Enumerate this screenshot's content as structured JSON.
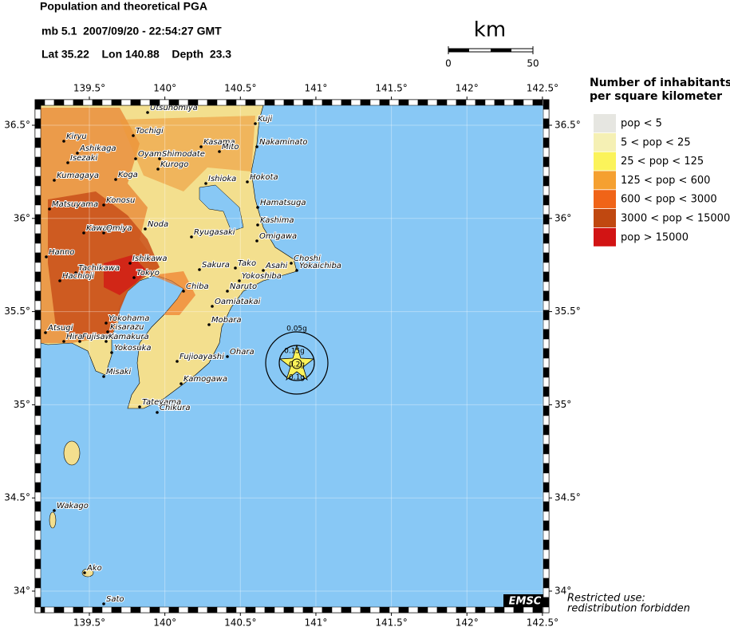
{
  "header": {
    "title": "Population and theoretical PGA",
    "event": "mb 5.1  2007/09/20 - 22:54:27 GMT",
    "location": "Lat 35.22    Lon 140.88    Depth  23.3"
  },
  "scale_bar": {
    "unit": "km",
    "ticks": [
      0,
      50
    ]
  },
  "axes": {
    "lon_ticks": [
      {
        "value": 139.5,
        "label": "139.5°"
      },
      {
        "value": 140,
        "label": "140°"
      },
      {
        "value": 140.5,
        "label": "140.5°"
      },
      {
        "value": 141,
        "label": "141°"
      },
      {
        "value": 141.5,
        "label": "141.5°"
      },
      {
        "value": 142,
        "label": "142°"
      },
      {
        "value": 142.5,
        "label": "142.5°"
      }
    ],
    "lat_ticks": [
      {
        "value": 36.5,
        "label": "36.5°"
      },
      {
        "value": 36,
        "label": "36°"
      },
      {
        "value": 35.5,
        "label": "35.5°"
      },
      {
        "value": 35,
        "label": "35°"
      },
      {
        "value": 34.5,
        "label": "34.5°"
      },
      {
        "value": 34,
        "label": "34°"
      }
    ]
  },
  "legend": {
    "title": [
      "Number of inhabitants",
      "per square kilometer"
    ],
    "items": [
      {
        "label": "pop < 5",
        "color": "#e6e6e1"
      },
      {
        "label": "5 < pop < 25",
        "color": "#f5f0b4"
      },
      {
        "label": "25 < pop < 125",
        "color": "#fbf35a"
      },
      {
        "label": "125 < pop < 600",
        "color": "#f5a030"
      },
      {
        "label": "600 < pop < 3000",
        "color": "#f06418"
      },
      {
        "label": "3000 < pop < 15000",
        "color": "#c04810"
      },
      {
        "label": "pop > 15000",
        "color": "#d21414"
      }
    ]
  },
  "pga": {
    "labels": [
      "0.05g",
      "0.15g",
      "0.2g",
      "0.1g"
    ]
  },
  "cities": [
    "Utsunomiya",
    "Kuji",
    "Tochigi",
    "Kiryu",
    "Ashikaga",
    "Kasama",
    "Mito",
    "Nakaminato",
    "Oyama",
    "Shimodate",
    "Isezaki",
    "Kurogo",
    "Koga",
    "Kumagaya",
    "Ishioka",
    "Hokota",
    "Konosu",
    "Matsuyama",
    "Hamatsuga",
    "Kashima",
    "Noda",
    "Kawagoe",
    "Omiya",
    "Ryugasaki",
    "Omigawa",
    "Hanno",
    "Ishikawa",
    "Sakura",
    "Tako",
    "Asahi",
    "Choshi",
    "Yokaichiba",
    "Tachikawa",
    "Hachioji",
    "Tokyo",
    "Yokoshiba",
    "Naruto",
    "Chiba",
    "Oamiatakai",
    "Mobara",
    "Atsugi",
    "Yokohama",
    "Kisarazu",
    "Hira",
    "Fujisawa",
    "Kamakura",
    "Yokosuka",
    "Ohara",
    "Fujioayashi",
    "Misaki",
    "Kamogawa",
    "Tateyama",
    "Chikura",
    "Wakago",
    "Ako",
    "Sato"
  ],
  "footer": {
    "logo": "EMSC",
    "notice": [
      "Restricted use:",
      "redistribution forbidden"
    ]
  }
}
